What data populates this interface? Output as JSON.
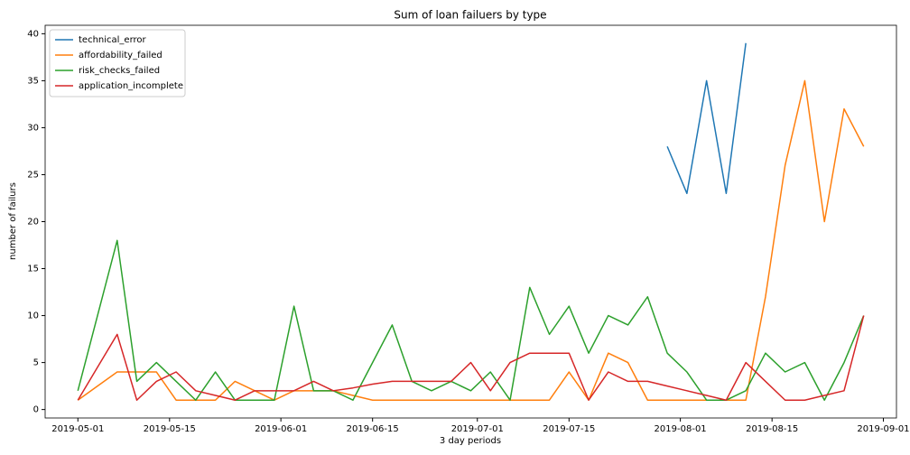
{
  "chart_data": {
    "type": "line",
    "title": "Sum of loan failuers by type",
    "xlabel": "3 day periods",
    "ylabel": "number of failurs",
    "x": [
      "2019-05-01",
      "2019-05-04",
      "2019-05-07",
      "2019-05-10",
      "2019-05-13",
      "2019-05-16",
      "2019-05-19",
      "2019-05-22",
      "2019-05-25",
      "2019-05-28",
      "2019-05-31",
      "2019-06-03",
      "2019-06-06",
      "2019-06-09",
      "2019-06-12",
      "2019-06-15",
      "2019-06-18",
      "2019-06-21",
      "2019-06-24",
      "2019-06-27",
      "2019-06-30",
      "2019-07-03",
      "2019-07-06",
      "2019-07-09",
      "2019-07-12",
      "2019-07-15",
      "2019-07-18",
      "2019-07-21",
      "2019-07-24",
      "2019-07-27",
      "2019-07-30",
      "2019-08-02",
      "2019-08-05",
      "2019-08-08",
      "2019-08-11",
      "2019-08-14",
      "2019-08-17",
      "2019-08-20",
      "2019-08-23",
      "2019-08-26",
      "2019-08-29"
    ],
    "series": [
      {
        "name": "technical_error",
        "color": "#1f77b4",
        "values": [
          null,
          null,
          null,
          null,
          null,
          null,
          null,
          null,
          null,
          null,
          null,
          null,
          null,
          null,
          null,
          null,
          null,
          null,
          null,
          null,
          null,
          null,
          null,
          null,
          null,
          null,
          null,
          null,
          null,
          null,
          28,
          23,
          35,
          23,
          39,
          null,
          null,
          null,
          null,
          null,
          null
        ]
      },
      {
        "name": "affordability_failed",
        "color": "#ff7f0e",
        "values": [
          1,
          2.5,
          4,
          4,
          4,
          1,
          1,
          1,
          3,
          2,
          1,
          2,
          2,
          2,
          1.5,
          1,
          1,
          1,
          1,
          1,
          1,
          1,
          1,
          1,
          1,
          4,
          1,
          6,
          5,
          1,
          1,
          1,
          1,
          1,
          1,
          12,
          26,
          35,
          20,
          32,
          28
        ]
      },
      {
        "name": "risk_checks_failed",
        "color": "#2ca02c",
        "values": [
          2,
          10,
          18,
          3,
          5,
          3,
          1,
          4,
          1,
          1,
          1,
          11,
          2,
          2,
          1,
          5,
          9,
          3,
          2,
          3,
          2,
          4,
          1,
          13,
          8,
          11,
          6,
          10,
          9,
          12,
          6,
          4,
          1,
          1,
          2,
          6,
          4,
          5,
          1,
          5,
          10
        ]
      },
      {
        "name": "application_incomplete",
        "color": "#d62728",
        "values": [
          1,
          4.5,
          8,
          1,
          3,
          4,
          2,
          1.5,
          1,
          2,
          2,
          2,
          3,
          2,
          2.3,
          2.7,
          3,
          3,
          3,
          3,
          5,
          2,
          5,
          6,
          6,
          6,
          1,
          4,
          3,
          3,
          2.5,
          2,
          1.5,
          1,
          5,
          3,
          1,
          1,
          1.5,
          2,
          10
        ]
      }
    ],
    "xlim": [
      "2019-04-26",
      "2019-09-03"
    ],
    "xticks": [
      "2019-05-01",
      "2019-05-15",
      "2019-06-01",
      "2019-06-15",
      "2019-07-01",
      "2019-07-15",
      "2019-08-01",
      "2019-08-15",
      "2019-09-01"
    ],
    "ylim": [
      -0.9,
      40.9
    ],
    "yticks": [
      0,
      5,
      10,
      15,
      20,
      25,
      30,
      35,
      40
    ],
    "grid": false,
    "legend": "upper-left"
  }
}
